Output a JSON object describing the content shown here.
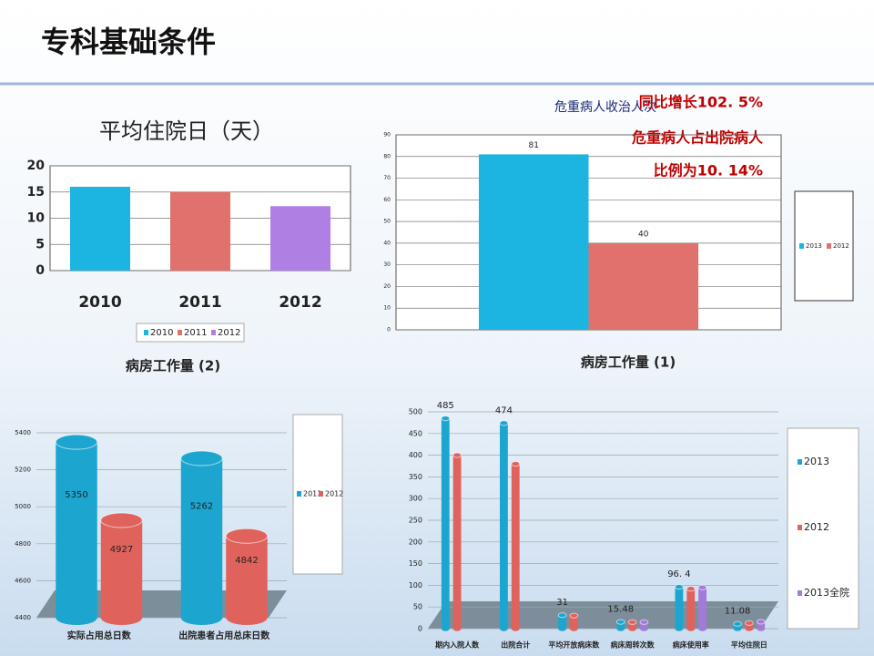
{
  "header": {
    "title": "专科基础条件"
  },
  "chart_data": [
    {
      "type": "bar",
      "title": "平均住院日（天）",
      "categories": [
        "2010",
        "2011",
        "2012"
      ],
      "values": [
        16,
        15,
        12.3
      ],
      "colors": [
        "#1cb4e0",
        "#e0716c",
        "#b07fe4"
      ],
      "ylim": [
        0,
        20
      ],
      "yticks": [
        0,
        5,
        10,
        15,
        20
      ],
      "grid": true,
      "legend": "bottom"
    },
    {
      "type": "bar",
      "annotations": [
        "危重病人收治人次",
        "同比增长102. 5%",
        "危重病人占出院病人",
        "比例为10. 14%"
      ],
      "categories": [
        null
      ],
      "series": [
        {
          "name": "2013",
          "color": "#1cb4e0",
          "values": [
            81
          ],
          "labels": true
        },
        {
          "name": "2012",
          "color": "#e0716c",
          "values": [
            40
          ],
          "labels": true
        }
      ],
      "ylim": [
        0,
        90
      ],
      "yticks": [
        0,
        10,
        20,
        30,
        40,
        50,
        60,
        70,
        80,
        90
      ],
      "grid": true,
      "legend": "right"
    },
    {
      "type": "bar3d",
      "title": "病房工作量 (2)",
      "categories": [
        "实际占用总日数",
        "出院患者占用总床日数"
      ],
      "series": [
        {
          "name": "2013",
          "color": "#1ca6cf",
          "values": [
            5350,
            5262
          ],
          "labels": true
        },
        {
          "name": "2012",
          "color": "#e0625c",
          "values": [
            4927,
            4842
          ],
          "labels": true
        }
      ],
      "ylim": [
        4400,
        5400
      ],
      "yticks": [
        4400,
        4600,
        4800,
        5000,
        5200,
        5400
      ],
      "grid": true,
      "legend": "right"
    },
    {
      "type": "bar3d",
      "title": "病房工作量 (1)",
      "categories": [
        "期内入院人数",
        "出院合计",
        "平均开放病床数",
        "病床周转次数",
        "病床使用率",
        "平均住院日"
      ],
      "series": [
        {
          "name": "2013",
          "color": "#1ca6cf",
          "values": [
            485,
            474,
            31,
            15.48,
            96.4,
            11.08
          ],
          "value_labels": [
            "485",
            "474",
            "31",
            "15.48",
            "96. 4",
            "11.08"
          ],
          "labels": true
        },
        {
          "name": "2012",
          "color": "#e0625c",
          "values": [
            400,
            380,
            30,
            15,
            92,
            13
          ],
          "labels": false
        },
        {
          "name": "2013全院",
          "color": "#a27ad8",
          "values": [
            null,
            null,
            null,
            15,
            95,
            16
          ],
          "labels": false
        }
      ],
      "ylim": [
        0,
        500
      ],
      "yticks": [
        0,
        50,
        100,
        150,
        200,
        250,
        300,
        350,
        400,
        450,
        500
      ],
      "grid": true,
      "legend": "right"
    }
  ]
}
